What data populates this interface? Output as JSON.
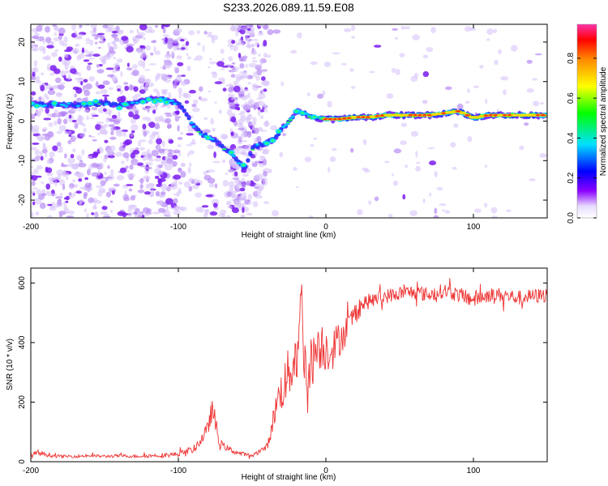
{
  "chart_data": [
    {
      "type": "heatmap",
      "title": "S233.2026.089.11.59.E08",
      "xlabel": "Height of straight line (km)",
      "ylabel": "Frequency (Hz)",
      "xlim": [
        -200,
        150
      ],
      "ylim": [
        -24.5,
        24.5
      ],
      "xticks": [
        -200,
        -100,
        0,
        100
      ],
      "yticks": [
        20,
        10,
        0,
        -10,
        -20
      ],
      "colorbar": {
        "label": "Normalized spectral amplitude",
        "range": [
          0,
          0.97
        ],
        "ticks": [
          "0.0",
          "0.2",
          "0.4",
          "0.6",
          "0.8"
        ],
        "tick_values": [
          0.0,
          0.2,
          0.4,
          0.6,
          0.8
        ]
      },
      "ridge": [
        {
          "x": -200,
          "f": 4.5
        },
        {
          "x": -190,
          "f": 4.0
        },
        {
          "x": -180,
          "f": 4.2
        },
        {
          "x": -170,
          "f": 4.0
        },
        {
          "x": -160,
          "f": 4.3
        },
        {
          "x": -150,
          "f": 4.5
        },
        {
          "x": -140,
          "f": 4.0
        },
        {
          "x": -130,
          "f": 4.5
        },
        {
          "x": -120,
          "f": 5.5
        },
        {
          "x": -110,
          "f": 5.5
        },
        {
          "x": -100,
          "f": 4.5
        },
        {
          "x": -95,
          "f": 2.0
        },
        {
          "x": -90,
          "f": -1.0
        },
        {
          "x": -85,
          "f": -3.0
        },
        {
          "x": -80,
          "f": -4.0
        },
        {
          "x": -75,
          "f": -5.0
        },
        {
          "x": -70,
          "f": -6.5
        },
        {
          "x": -65,
          "f": -8.0
        },
        {
          "x": -60,
          "f": -10.0
        },
        {
          "x": -55,
          "f": -12.0
        },
        {
          "x": -50,
          "f": -7.0
        },
        {
          "x": -45,
          "f": -6.0
        },
        {
          "x": -40,
          "f": -5.5
        },
        {
          "x": -35,
          "f": -4.5
        },
        {
          "x": -30,
          "f": -2.0
        },
        {
          "x": -25,
          "f": 0.0
        },
        {
          "x": -20,
          "f": 2.5
        },
        {
          "x": -15,
          "f": 2.0
        },
        {
          "x": -10,
          "f": 1.0
        },
        {
          "x": 0,
          "f": 0.5
        },
        {
          "x": 10,
          "f": 0.5
        },
        {
          "x": 20,
          "f": 1.0
        },
        {
          "x": 30,
          "f": 1.0
        },
        {
          "x": 40,
          "f": 1.5
        },
        {
          "x": 50,
          "f": 1.5
        },
        {
          "x": 60,
          "f": 1.5
        },
        {
          "x": 70,
          "f": 1.5
        },
        {
          "x": 80,
          "f": 2.0
        },
        {
          "x": 90,
          "f": 2.5
        },
        {
          "x": 100,
          "f": 0.8
        },
        {
          "x": 110,
          "f": 1.5
        },
        {
          "x": 120,
          "f": 1.5
        },
        {
          "x": 130,
          "f": 1.5
        },
        {
          "x": 140,
          "f": 1.5
        },
        {
          "x": 150,
          "f": 1.5
        }
      ]
    },
    {
      "type": "line",
      "xlabel": "Height of straight line (km)",
      "ylabel": "SNR (10 * v/v)",
      "xlim": [
        -200,
        150
      ],
      "ylim": [
        0,
        650
      ],
      "xticks": [
        -200,
        -100,
        0,
        100
      ],
      "yticks": [
        0,
        200,
        400,
        600
      ],
      "color": "#ee3333",
      "series": [
        {
          "name": "SNR",
          "x": [
            -200,
            -195,
            -190,
            -185,
            -180,
            -170,
            -160,
            -150,
            -140,
            -130,
            -120,
            -110,
            -100,
            -95,
            -90,
            -85,
            -80,
            -77,
            -75,
            -72,
            -70,
            -65,
            -60,
            -55,
            -50,
            -45,
            -40,
            -38,
            -35,
            -32,
            -30,
            -28,
            -25,
            -22,
            -20,
            -18,
            -16,
            -15,
            -13,
            -10,
            -5,
            0,
            5,
            10,
            15,
            20,
            25,
            30,
            40,
            50,
            60,
            70,
            80,
            90,
            100,
            110,
            120,
            130,
            140,
            150
          ],
          "y": [
            20,
            30,
            25,
            20,
            18,
            18,
            20,
            18,
            20,
            18,
            20,
            22,
            25,
            35,
            40,
            70,
            110,
            180,
            130,
            60,
            55,
            40,
            30,
            25,
            20,
            35,
            50,
            80,
            160,
            220,
            240,
            260,
            300,
            340,
            360,
            420,
            600,
            330,
            320,
            330,
            400,
            380,
            380,
            420,
            450,
            500,
            530,
            540,
            555,
            565,
            570,
            560,
            575,
            560,
            545,
            560,
            560,
            550,
            555,
            560
          ],
          "noise": [
            8,
            10,
            8,
            6,
            5,
            5,
            5,
            5,
            5,
            5,
            6,
            8,
            8,
            10,
            12,
            18,
            25,
            40,
            40,
            20,
            12,
            10,
            8,
            6,
            6,
            8,
            12,
            20,
            40,
            60,
            70,
            80,
            90,
            100,
            110,
            120,
            90,
            100,
            100,
            90,
            90,
            80,
            70,
            60,
            50,
            40,
            30,
            25,
            25,
            25,
            25,
            25,
            25,
            25,
            30,
            25,
            25,
            25,
            25,
            25
          ]
        }
      ]
    }
  ]
}
